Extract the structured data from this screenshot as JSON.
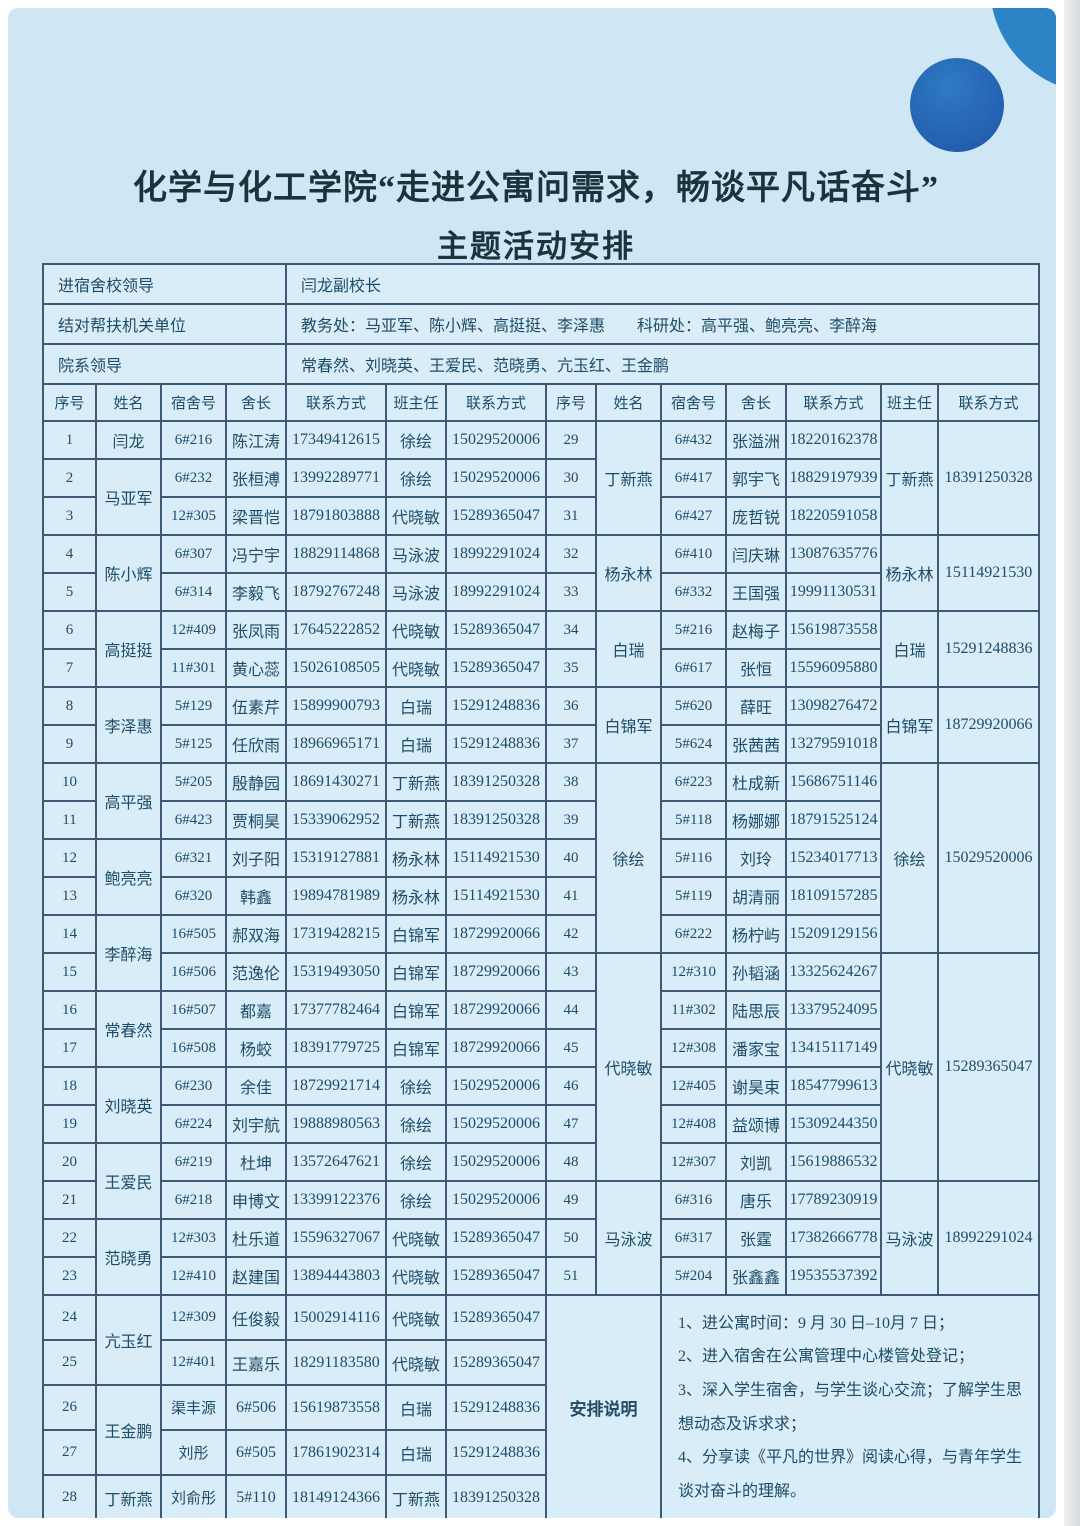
{
  "page": {
    "title_line1": "化学与化工学院“走进公寓问需求，畅谈平凡话奋斗”",
    "title_line2": "主题活动安排"
  },
  "colors": {
    "panel_bg": "#cfe7f5",
    "cell_bg": "#d9edf9",
    "border": "#3e5b76",
    "text": "#1e4c66",
    "title": "#1b333d",
    "circle_small": "#2c84c6",
    "circle_large_start": "#2f7ac4",
    "circle_large_end": "#1e55a8"
  },
  "info_rows": [
    {
      "label": "进宿舍校领导",
      "value": "闫龙副校长"
    },
    {
      "label": "结对帮扶机关单位",
      "value": "教务处：马亚军、陈小辉、高挺挺、李泽惠　　科研处：高平强、鲍亮亮、李醉海"
    },
    {
      "label": "院系领导",
      "value": "常春然、刘晓英、王爱民、范晓勇、亢玉红、王金鹏"
    }
  ],
  "column_headers": [
    "序号",
    "姓名",
    "宿舍号",
    "舍长",
    "联系方式",
    "班主任",
    "联系方式",
    "序号",
    "姓名",
    "宿舍号",
    "舍长",
    "联系方式",
    "班主任",
    "联系方式"
  ],
  "left_rows": [
    [
      1,
      "闫龙",
      1,
      "6#216",
      "陈江涛",
      "17349412615",
      "徐绘",
      "15029520006"
    ],
    [
      2,
      "马亚军",
      2,
      "6#232",
      "张桓溥",
      "13992289771",
      "徐绘",
      "15029520006"
    ],
    [
      3,
      null,
      0,
      "12#305",
      "梁晋恺",
      "18791803888",
      "代晓敏",
      "15289365047"
    ],
    [
      4,
      "陈小辉",
      2,
      "6#307",
      "冯宁宇",
      "18829114868",
      "马泳波",
      "18992291024"
    ],
    [
      5,
      null,
      0,
      "6#314",
      "李毅飞",
      "18792767248",
      "马泳波",
      "18992291024"
    ],
    [
      6,
      "高挺挺",
      2,
      "12#409",
      "张凤雨",
      "17645222852",
      "代晓敏",
      "15289365047"
    ],
    [
      7,
      null,
      0,
      "11#301",
      "黄心蕊",
      "15026108505",
      "代晓敏",
      "15289365047"
    ],
    [
      8,
      "李泽惠",
      2,
      "5#129",
      "伍素芹",
      "15899900793",
      "白瑞",
      "15291248836"
    ],
    [
      9,
      null,
      0,
      "5#125",
      "任欣雨",
      "18966965171",
      "白瑞",
      "15291248836"
    ],
    [
      10,
      "高平强",
      2,
      "5#205",
      "殷静园",
      "18691430271",
      "丁新燕",
      "18391250328"
    ],
    [
      11,
      null,
      0,
      "6#423",
      "贾桐昊",
      "15339062952",
      "丁新燕",
      "18391250328"
    ],
    [
      12,
      "鲍亮亮",
      2,
      "6#321",
      "刘子阳",
      "15319127881",
      "杨永林",
      "15114921530"
    ],
    [
      13,
      null,
      0,
      "6#320",
      "韩鑫",
      "19894781989",
      "杨永林",
      "15114921530"
    ],
    [
      14,
      "李醉海",
      2,
      "16#505",
      "郝双海",
      "17319428215",
      "白锦军",
      "18729920066"
    ],
    [
      15,
      null,
      0,
      "16#506",
      "范逸伦",
      "15319493050",
      "白锦军",
      "18729920066"
    ],
    [
      16,
      "常春然",
      2,
      "16#507",
      "都嘉",
      "17377782464",
      "白锦军",
      "18729920066"
    ],
    [
      17,
      null,
      0,
      "16#508",
      "杨蛟",
      "18391779725",
      "白锦军",
      "18729920066"
    ],
    [
      18,
      "刘晓英",
      2,
      "6#230",
      "余佳",
      "18729921714",
      "徐绘",
      "15029520006"
    ],
    [
      19,
      null,
      0,
      "6#224",
      "刘宇航",
      "19888980563",
      "徐绘",
      "15029520006"
    ],
    [
      20,
      "王爱民",
      2,
      "6#219",
      "杜坤",
      "13572647621",
      "徐绘",
      "15029520006"
    ],
    [
      21,
      null,
      0,
      "6#218",
      "申博文",
      "13399122376",
      "徐绘",
      "15029520006"
    ],
    [
      22,
      "范晓勇",
      2,
      "12#303",
      "杜乐道",
      "15596327067",
      "代晓敏",
      "15289365047"
    ],
    [
      23,
      null,
      0,
      "12#410",
      "赵建国",
      "13894443803",
      "代晓敏",
      "15289365047"
    ],
    [
      24,
      "亢玉红",
      2,
      "12#309",
      "任俊毅",
      "15002914116",
      "代晓敏",
      "15289365047"
    ],
    [
      25,
      null,
      0,
      "12#401",
      "王嘉乐",
      "18291183580",
      "代晓敏",
      "15289365047"
    ],
    [
      26,
      "王金鹏",
      2,
      "渠丰源",
      "6#506",
      "15619873558",
      "白瑞",
      "15291248836"
    ],
    [
      27,
      null,
      0,
      "刘彤",
      "6#505",
      "17861902314",
      "白瑞",
      "15291248836"
    ],
    [
      28,
      "丁新燕",
      1,
      "刘俞彤",
      "5#110",
      "18149124366",
      "丁新燕",
      "18391250328"
    ]
  ],
  "right_rows": [
    [
      29,
      "丁新燕",
      3,
      "6#432",
      "张溢洲",
      "18220162378",
      "丁新燕",
      "18391250328",
      3
    ],
    [
      30,
      null,
      0,
      "6#417",
      "郭宇飞",
      "18829197939",
      null,
      null,
      0
    ],
    [
      31,
      null,
      0,
      "6#427",
      "庞哲锐",
      "18220591058",
      null,
      null,
      0
    ],
    [
      32,
      "杨永林",
      2,
      "6#410",
      "闫庆琳",
      "13087635776",
      "杨永林",
      "15114921530",
      2
    ],
    [
      33,
      null,
      0,
      "6#332",
      "王国强",
      "19991130531",
      null,
      null,
      0
    ],
    [
      34,
      "白瑞",
      2,
      "5#216",
      "赵梅子",
      "15619873558",
      "白瑞",
      "15291248836",
      2
    ],
    [
      35,
      null,
      0,
      "6#617",
      "张恒",
      "15596095880",
      null,
      null,
      0
    ],
    [
      36,
      "白锦军",
      2,
      "5#620",
      "薛旺",
      "13098276472",
      "白锦军",
      "18729920066",
      2
    ],
    [
      37,
      null,
      0,
      "5#624",
      "张茜茜",
      "13279591018",
      null,
      null,
      0
    ],
    [
      38,
      "徐绘",
      5,
      "6#223",
      "杜成新",
      "15686751146",
      "徐绘",
      "15029520006",
      5
    ],
    [
      39,
      null,
      0,
      "5#118",
      "杨娜娜",
      "18791525124",
      null,
      null,
      0
    ],
    [
      40,
      null,
      0,
      "5#116",
      "刘玲",
      "15234017713",
      null,
      null,
      0
    ],
    [
      41,
      null,
      0,
      "5#119",
      "胡清丽",
      "18109157285",
      null,
      null,
      0
    ],
    [
      42,
      null,
      0,
      "6#222",
      "杨柠屿",
      "15209129156",
      null,
      null,
      0
    ],
    [
      43,
      "代晓敏",
      6,
      "12#310",
      "孙韬涵",
      "13325624267",
      "代晓敏",
      "15289365047",
      6
    ],
    [
      44,
      null,
      0,
      "11#302",
      "陆思辰",
      "13379524095",
      null,
      null,
      0
    ],
    [
      45,
      null,
      0,
      "12#308",
      "潘家宝",
      "13415117149",
      null,
      null,
      0
    ],
    [
      46,
      null,
      0,
      "12#405",
      "谢昊束",
      "18547799613",
      null,
      null,
      0
    ],
    [
      47,
      null,
      0,
      "12#408",
      "益颂博",
      "15309244350",
      null,
      null,
      0
    ],
    [
      48,
      null,
      0,
      "12#307",
      "刘凯",
      "15619886532",
      null,
      null,
      0
    ],
    [
      49,
      "马泳波",
      3,
      "6#316",
      "唐乐",
      "17789230919",
      "马泳波",
      "18992291024",
      3
    ],
    [
      50,
      null,
      0,
      "6#317",
      "张霆",
      "17382666778",
      null,
      null,
      0
    ],
    [
      51,
      null,
      0,
      "5#204",
      "张鑫鑫",
      "19535537392",
      null,
      null,
      0
    ]
  ],
  "notes": {
    "label": "安排说明",
    "items": [
      "1、进公寓时间：9 月 30 日–10月 7 日；",
      "2、进入宿舍在公寓管理中心楼管处登记；",
      "3、深入学生宿舍，与学生谈心交流；了解学生思想动态及诉求求；",
      "4、分享读《平凡的世界》阅读心得，与青年学生谈对奋斗的理解。"
    ]
  }
}
